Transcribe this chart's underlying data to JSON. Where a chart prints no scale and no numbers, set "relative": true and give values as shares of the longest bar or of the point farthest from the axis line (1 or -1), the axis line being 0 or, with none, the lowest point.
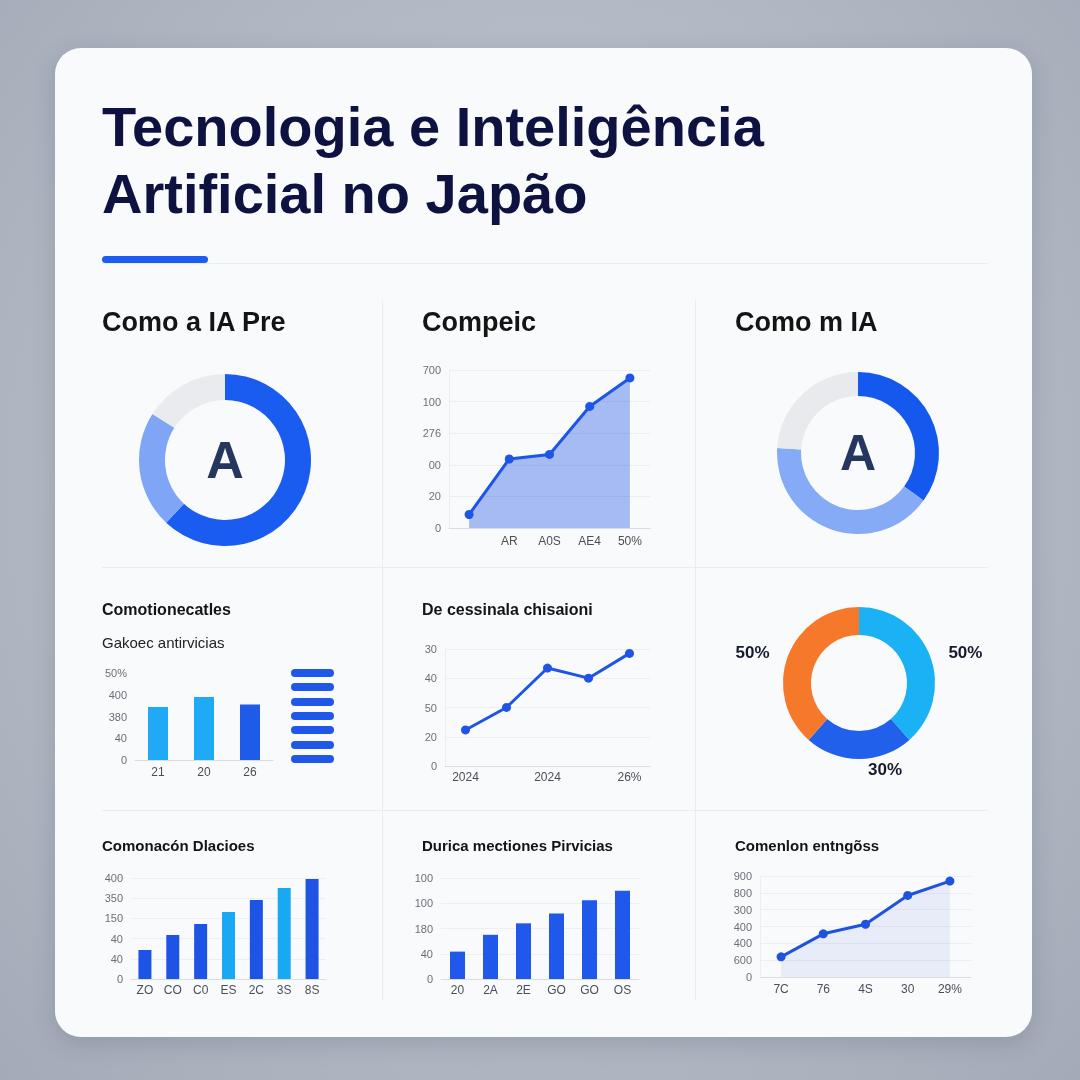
{
  "chart_data": [
    {
      "type": "other",
      "title": "Tecnologia e Inteligência Artificial no Japão"
    },
    {
      "type": "donut",
      "title": "Como a IA Pre",
      "categories": [
        null,
        null,
        null
      ],
      "values": [
        62,
        22,
        16
      ],
      "colors": [
        "#1a5cf0",
        "#7fa6f6",
        "#e9ebef"
      ],
      "annotations": [
        "A"
      ]
    },
    {
      "type": "area",
      "title": "Compeic",
      "relative": true,
      "categories": [
        null,
        "AR",
        "A0S",
        "AE4",
        "50%"
      ],
      "values": [
        0.09,
        0.46,
        0.49,
        0.81,
        1
      ],
      "color": "#1d55e6",
      "annotations": [
        "0",
        "20",
        "00",
        "276",
        "100",
        "700"
      ],
      "grid": "y",
      "marker": "circle"
    },
    {
      "type": "donut",
      "title": "Como m IA",
      "categories": [
        null,
        null,
        null
      ],
      "values": [
        35,
        41,
        24
      ],
      "colors": [
        "#1558ee",
        "#86abf6",
        "#e8eaee"
      ],
      "annotations": [
        "A"
      ]
    },
    {
      "type": "bar",
      "title": "Comotionecatles",
      "subtitle": "Gakoec antirvicias",
      "relative": true,
      "categories": [
        "21",
        "20",
        "26"
      ],
      "values": [
        0.84,
        1,
        0.88
      ],
      "colors": [
        "#20a9f4",
        "#1eaaf5",
        "#1d5be8"
      ],
      "annotations": [
        "0",
        "40",
        "380",
        "400",
        "50%"
      ]
    },
    {
      "type": "line",
      "title": "De cessinala chisaioni",
      "relative": true,
      "categories": [
        "2024",
        null,
        "2024",
        null,
        "26%"
      ],
      "values": [
        0.32,
        0.52,
        0.87,
        0.78,
        1
      ],
      "color": "#1f55e5",
      "annotations": [
        "0",
        "20",
        "50",
        "40",
        "30"
      ],
      "grid": "y",
      "marker": "circle"
    },
    {
      "type": "donut",
      "categories": [
        null,
        null,
        null
      ],
      "values": [
        50,
        30,
        50
      ],
      "colors": [
        "#1bb2f5",
        "#2160eb",
        "#f6782a"
      ],
      "value_labels": [
        "50%",
        "30%",
        "50%"
      ]
    },
    {
      "type": "bar",
      "title": "Comonacón Dlacioes",
      "relative": true,
      "categories": [
        "ZO",
        "CO",
        "C0",
        "ES",
        "2C",
        "3S",
        "8S"
      ],
      "values": [
        0.29,
        0.44,
        0.55,
        0.67,
        0.79,
        0.91,
        1
      ],
      "colors": [
        "#1e54e6",
        "#1e54e6",
        "#1e54e6",
        "#19a9f2",
        "#1e54e6",
        "#19a9f2",
        "#1e54e6"
      ],
      "annotations": [
        "0",
        "40",
        "40",
        "150",
        "350",
        "400"
      ],
      "grid": "y"
    },
    {
      "type": "bar",
      "title": "Durica mectiones Pirvicias",
      "relative": true,
      "categories": [
        "20",
        "2A",
        "2E",
        "GO",
        "GO",
        "OS"
      ],
      "values": [
        0.31,
        0.5,
        0.63,
        0.74,
        0.89,
        1
      ],
      "color": "#1f58ea",
      "annotations": [
        "0",
        "40",
        "180",
        "100",
        "100"
      ],
      "grid": "y"
    },
    {
      "type": "area",
      "title": "Comenlon entngõss",
      "relative": true,
      "categories": [
        "7C",
        "76",
        "4S",
        "30",
        "29%"
      ],
      "values": [
        0.21,
        0.45,
        0.55,
        0.85,
        1
      ],
      "color": "#1f52de",
      "annotations": [
        "0",
        "600",
        "400",
        "400",
        "300",
        "800",
        "900"
      ],
      "grid": "y",
      "marker": "circle"
    }
  ]
}
